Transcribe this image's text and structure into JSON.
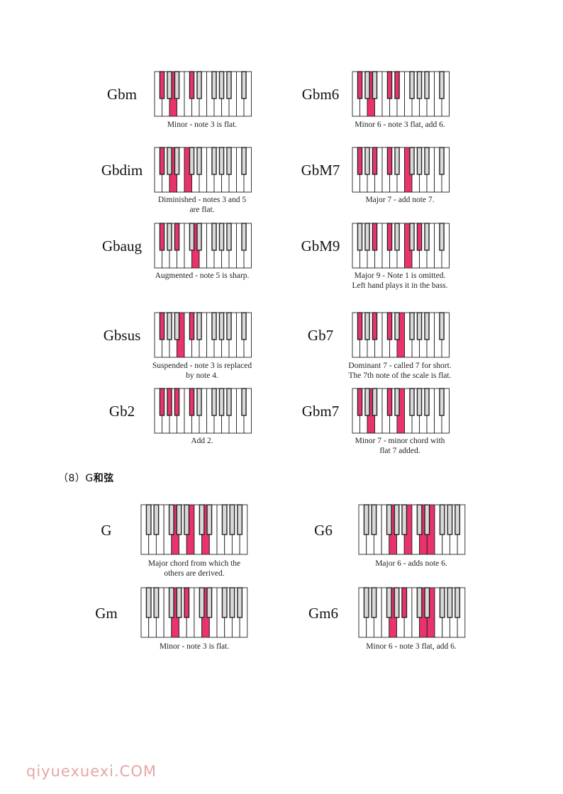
{
  "chord_groups": [
    {
      "name": "Gbm",
      "caption": "Minor - note 3 is flat.",
      "pressed": [
        1,
        4,
        8
      ]
    },
    {
      "name": "Gbm6",
      "caption": "Minor 6 - note 3 flat, add 6.",
      "pressed": [
        1,
        4,
        8,
        10
      ]
    },
    {
      "name": "Gbdim",
      "caption": "Diminished - notes 3 and 5\nare flat.",
      "pressed": [
        1,
        4,
        7
      ]
    },
    {
      "name": "GbM7",
      "caption": "Major 7 - add note 7.",
      "pressed": [
        1,
        5,
        8,
        12
      ]
    },
    {
      "name": "Gbaug",
      "caption": "Augmented - note 5 is sharp.",
      "pressed": [
        1,
        5,
        9
      ]
    },
    {
      "name": "GbM9",
      "caption": "Major 9 - Note 1 is omitted.\nLeft hand plays it in the bass.",
      "pressed": [
        5,
        8,
        12,
        15
      ]
    },
    {
      "name": "Gbsus",
      "caption": "Suspended - note 3 is replaced\nby note 4.",
      "pressed": [
        1,
        6,
        8
      ]
    },
    {
      "name": "Gb7",
      "caption": "Dominant 7 - called 7 for short.\nThe 7th note of the scale is flat.",
      "pressed": [
        1,
        5,
        8,
        11
      ]
    },
    {
      "name": "Gb2",
      "caption": "Add 2.",
      "pressed": [
        1,
        3,
        5,
        8
      ]
    },
    {
      "name": "Gbm7",
      "caption": "Minor 7 - minor chord with\nflat 7 added.",
      "pressed": [
        1,
        4,
        8,
        11
      ]
    },
    {
      "name": "G",
      "caption": "Major chord from which the\nothers are derived.",
      "pressed": [
        7,
        11,
        14
      ]
    },
    {
      "name": "G6",
      "caption": "Major 6 - adds note 6.",
      "pressed": [
        7,
        11,
        14,
        16
      ]
    },
    {
      "name": "Gm",
      "caption": "Minor - note 3 is flat.",
      "pressed": [
        7,
        10,
        14
      ]
    },
    {
      "name": "Gm6",
      "caption": "Minor 6 - note 3 flat, add 6.",
      "pressed": [
        7,
        10,
        14,
        16
      ]
    }
  ],
  "section": {
    "number": "（8）G",
    "title": "和弦"
  },
  "watermark": "qiyuexuexi.COM",
  "colors": {
    "pressed": "#e8336b",
    "black_key": "#b5b5b5",
    "outline": "#222222"
  }
}
